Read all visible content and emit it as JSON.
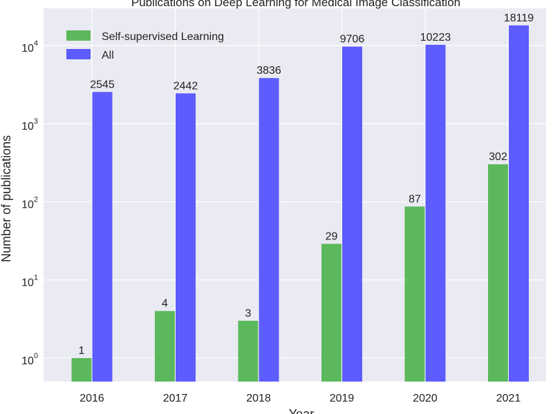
{
  "chart_data": {
    "type": "bar",
    "title": "Publications on Deep Learning for Medical Image Classification",
    "xlabel": "Year",
    "ylabel": "Number of publications",
    "yscale": "log",
    "ylim": [
      0.5,
      30000
    ],
    "grid": true,
    "legend_position": "top-left",
    "categories": [
      "2016",
      "2017",
      "2018",
      "2019",
      "2020",
      "2021"
    ],
    "y_ticks": [
      {
        "value": 1,
        "base": "10",
        "exp": "0"
      },
      {
        "value": 10,
        "base": "10",
        "exp": "1"
      },
      {
        "value": 100,
        "base": "10",
        "exp": "2"
      },
      {
        "value": 1000,
        "base": "10",
        "exp": "3"
      },
      {
        "value": 10000,
        "base": "10",
        "exp": "4"
      }
    ],
    "series": [
      {
        "name": "Self-supervised Learning",
        "color": "#5cb85c",
        "values": [
          1,
          4,
          3,
          29,
          87,
          302
        ],
        "labels": [
          "1",
          "4",
          "3",
          "29",
          "87",
          "302"
        ]
      },
      {
        "name": "All",
        "color": "#5c5cff",
        "values": [
          2545,
          2442,
          3836,
          9706,
          10223,
          18119
        ],
        "labels": [
          "2545",
          "2442",
          "3836",
          "9706",
          "10223",
          "18119"
        ]
      }
    ],
    "colors": {
      "plot_background": "#eaeaf2",
      "grid": "#ffffff",
      "text": "#222222"
    }
  }
}
